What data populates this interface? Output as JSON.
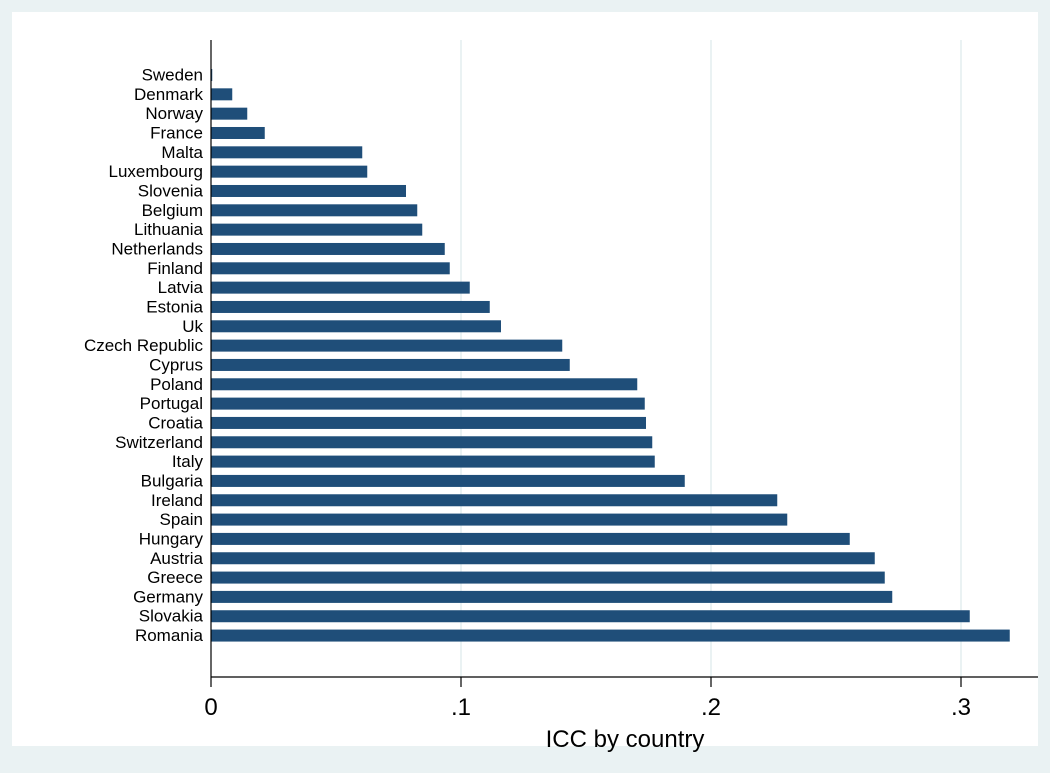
{
  "chart_data": {
    "type": "bar",
    "orientation": "horizontal",
    "categories": [
      "Sweden",
      "Denmark",
      "Norway",
      "France",
      "Malta",
      "Luxembourg",
      "Slovenia",
      "Belgium",
      "Lithuania",
      "Netherlands",
      "Finland",
      "Latvia",
      "Estonia",
      "Uk",
      "Czech Republic",
      "Cyprus",
      "Poland",
      "Portugal",
      "Croatia",
      "Switzerland",
      "Italy",
      "Bulgaria",
      "Ireland",
      "Spain",
      "Hungary",
      "Austria",
      "Greece",
      "Germany",
      "Slovakia",
      "Romania"
    ],
    "values": [
      0.0005,
      0.0085,
      0.0145,
      0.0215,
      0.0605,
      0.0625,
      0.078,
      0.0825,
      0.0845,
      0.0935,
      0.0955,
      0.1035,
      0.1115,
      0.116,
      0.1405,
      0.1435,
      0.1705,
      0.1735,
      0.174,
      0.1765,
      0.1775,
      0.1895,
      0.2265,
      0.2305,
      0.2555,
      0.2655,
      0.2695,
      0.2725,
      0.3035,
      0.3195
    ],
    "xlabel": "ICC by country",
    "ylabel": "",
    "xticks": [
      {
        "value": 0,
        "label": "0"
      },
      {
        "value": 0.1,
        "label": ".1"
      },
      {
        "value": 0.2,
        "label": ".2"
      },
      {
        "value": 0.3,
        "label": ".3"
      }
    ],
    "xlim": [
      0,
      0.33
    ],
    "grid": true,
    "colors": {
      "bar": "#1f4e79",
      "plot_bg": "#ffffff",
      "outer_bg": "#eaf2f3",
      "grid": "#eaf2f3",
      "axis": "#000000"
    }
  }
}
